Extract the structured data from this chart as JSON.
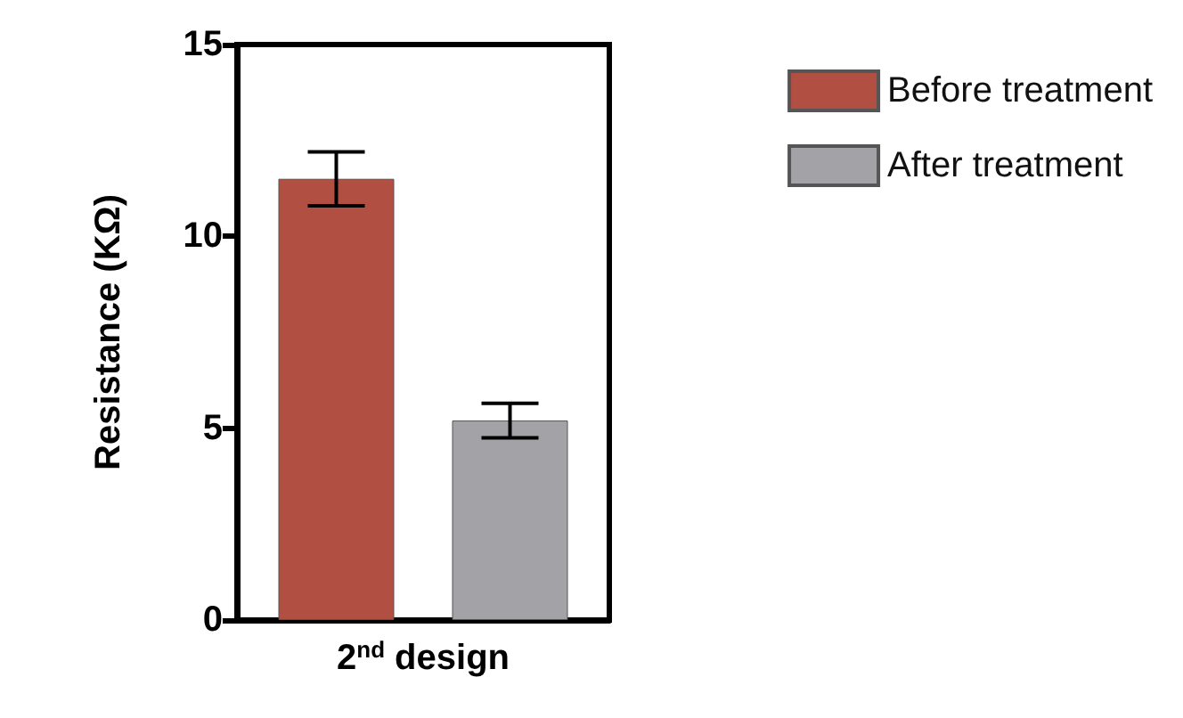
{
  "chart_data": {
    "type": "bar",
    "ylabel": "Resistance (KΩ)",
    "categories": [
      "2$^{nd}$ design"
    ],
    "series": [
      {
        "name": "Before treatment",
        "color": "#b24f43",
        "values": [
          11.5
        ],
        "errors": [
          0.7
        ]
      },
      {
        "name": "After treatment",
        "color": "#a3a2a7",
        "values": [
          5.2
        ],
        "errors": [
          0.45
        ]
      }
    ],
    "ylim": [
      0,
      15
    ],
    "yticks": [
      0,
      5,
      10,
      15
    ],
    "grid": false,
    "legend": "top right"
  }
}
